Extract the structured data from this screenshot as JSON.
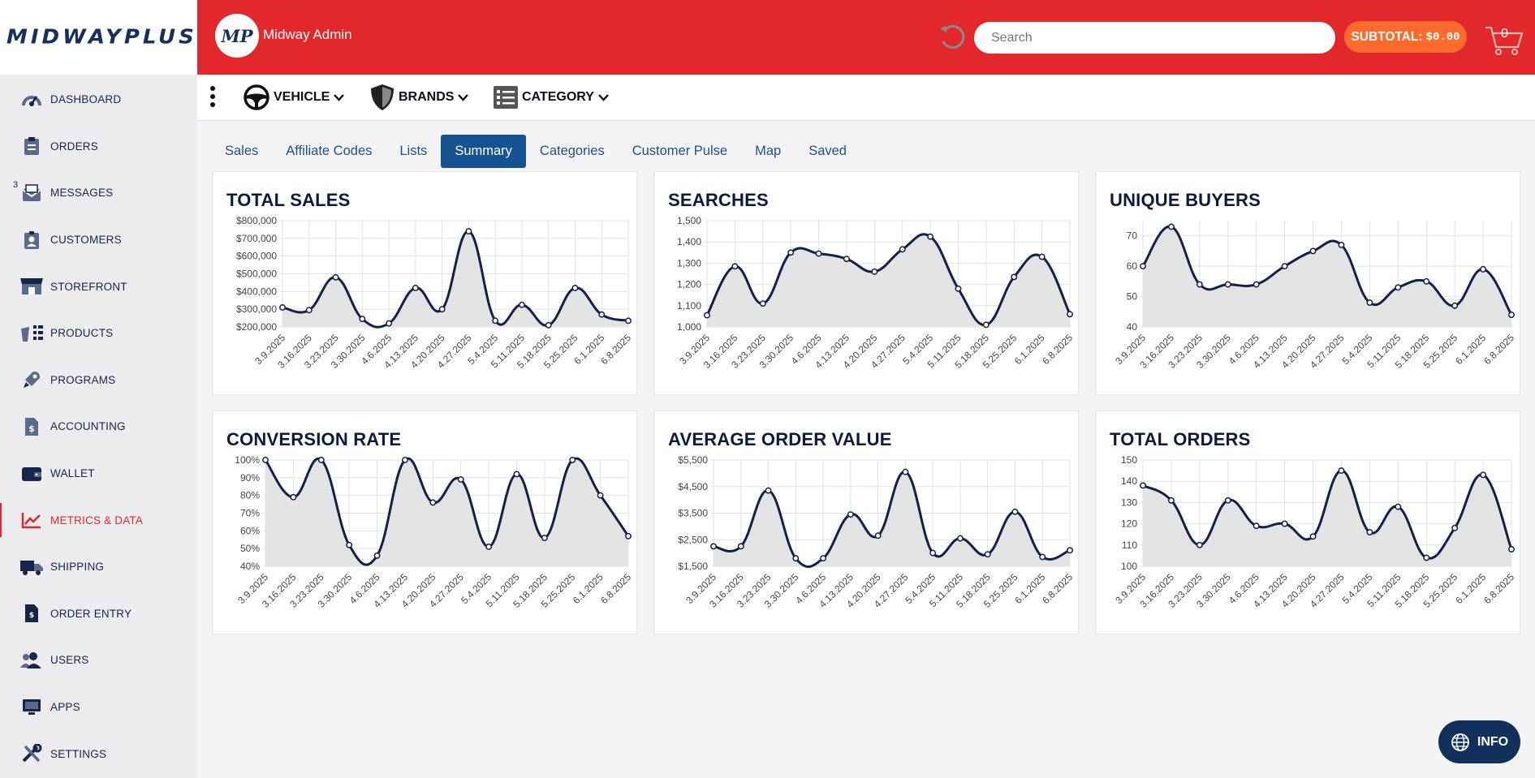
{
  "brand": {
    "logo": "MIDWAYPLUS"
  },
  "sidebar": {
    "items": [
      {
        "label": "DASHBOARD",
        "icon": "dashboard-icon"
      },
      {
        "label": "ORDERS",
        "icon": "orders-icon"
      },
      {
        "label": "MESSAGES",
        "icon": "messages-icon",
        "badge": "3"
      },
      {
        "label": "CUSTOMERS",
        "icon": "customers-icon"
      },
      {
        "label": "STOREFRONT",
        "icon": "storefront-icon"
      },
      {
        "label": "PRODUCTS",
        "icon": "products-icon"
      },
      {
        "label": "PROGRAMS",
        "icon": "programs-icon"
      },
      {
        "label": "ACCOUNTING",
        "icon": "accounting-icon"
      },
      {
        "label": "WALLET",
        "icon": "wallet-icon"
      },
      {
        "label": "METRICS & DATA",
        "icon": "metrics-icon",
        "active": true
      },
      {
        "label": "SHIPPING",
        "icon": "shipping-icon"
      },
      {
        "label": "ORDER ENTRY",
        "icon": "order-entry-icon"
      },
      {
        "label": "USERS",
        "icon": "users-icon"
      },
      {
        "label": "APPS",
        "icon": "apps-icon"
      },
      {
        "label": "SETTINGS",
        "icon": "settings-icon"
      }
    ]
  },
  "header": {
    "avatar_text": "MP",
    "admin_name": "Midway Admin",
    "search_placeholder": "Search",
    "subtotal_label": "SUBTOTAL:",
    "subtotal_value": "$0.00",
    "cart_count": "0"
  },
  "filters": {
    "vehicle": "VEHICLE",
    "brands": "BRANDS",
    "category": "CATEGORY"
  },
  "tabs": [
    "Sales",
    "Affiliate Codes",
    "Lists",
    "Summary",
    "Categories",
    "Customer Pulse",
    "Map",
    "Saved"
  ],
  "active_tab": "Summary",
  "info_button": "INFO",
  "colors": {
    "header_red": "#e2282b",
    "navy": "#0e1a3c",
    "tab_active": "#155292",
    "subtotal_orange": "#ff6b2c",
    "line": "#13204a",
    "area": "#e3e3e3"
  },
  "chart_data": [
    {
      "type": "area",
      "title": "TOTAL SALES",
      "x": [
        "3.9.2025",
        "3.16.2025",
        "3.23.2025",
        "3.30.2025",
        "4.6.2025",
        "4.13.2025",
        "4.20.2025",
        "4.27.2025",
        "5.4.2025",
        "5.11.2025",
        "5.18.2025",
        "5.25.2025",
        "6.1.2025",
        "6.8.2025"
      ],
      "values": [
        310000,
        295000,
        480000,
        245000,
        220000,
        420000,
        300000,
        740000,
        235000,
        325000,
        210000,
        420000,
        270000,
        235000
      ],
      "ylim": [
        200000,
        800000
      ],
      "yticks": [
        200000,
        300000,
        400000,
        500000,
        600000,
        700000,
        800000
      ],
      "ytick_labels": [
        "$200,000",
        "$300,000",
        "$400,000",
        "$500,000",
        "$600,000",
        "$700,000",
        "$800,000"
      ],
      "grid": true
    },
    {
      "type": "area",
      "title": "SEARCHES",
      "x": [
        "3.9.2025",
        "3.16.2025",
        "3.23.2025",
        "3.30.2025",
        "4.6.2025",
        "4.13.2025",
        "4.20.2025",
        "4.27.2025",
        "5.4.2025",
        "5.11.2025",
        "5.18.2025",
        "5.25.2025",
        "6.1.2025",
        "6.8.2025"
      ],
      "values": [
        1055,
        1285,
        1110,
        1350,
        1345,
        1320,
        1260,
        1365,
        1425,
        1180,
        1010,
        1235,
        1330,
        1060
      ],
      "ylim": [
        1000,
        1500
      ],
      "yticks": [
        1000,
        1100,
        1200,
        1300,
        1400,
        1500
      ],
      "ytick_labels": [
        "1,000",
        "1,100",
        "1,200",
        "1,300",
        "1,400",
        "1,500"
      ],
      "grid": true
    },
    {
      "type": "area",
      "title": "UNIQUE BUYERS",
      "x": [
        "3.9.2025",
        "3.16.2025",
        "3.23.2025",
        "3.30.2025",
        "4.6.2025",
        "4.13.2025",
        "4.20.2025",
        "4.27.2025",
        "5.4.2025",
        "5.11.2025",
        "5.18.2025",
        "5.25.2025",
        "6.1.2025",
        "6.8.2025"
      ],
      "values": [
        60,
        73,
        54,
        54,
        54,
        60,
        65,
        67,
        48,
        53,
        55,
        47,
        59,
        44
      ],
      "ylim": [
        40,
        75
      ],
      "yticks": [
        40,
        50,
        60,
        70
      ],
      "ytick_labels": [
        "40",
        "50",
        "60",
        "70"
      ],
      "grid": true
    },
    {
      "type": "area",
      "title": "CONVERSION RATE",
      "x": [
        "3.9.2025",
        "3.16.2025",
        "3.23.2025",
        "3.30.2025",
        "4.6.2025",
        "4.13.2025",
        "4.20.2025",
        "4.27.2025",
        "5.4.2025",
        "5.11.2025",
        "5.18.2025",
        "5.25.2025",
        "6.1.2025",
        "6.8.2025"
      ],
      "values": [
        100,
        79,
        100,
        52,
        46,
        100,
        76,
        89,
        51,
        92,
        56,
        100,
        80,
        57
      ],
      "ylim": [
        40,
        100
      ],
      "yticks": [
        40,
        50,
        60,
        70,
        80,
        90,
        100
      ],
      "ytick_labels": [
        "40%",
        "50%",
        "60%",
        "70%",
        "80%",
        "90%",
        "100%"
      ],
      "grid": true
    },
    {
      "type": "area",
      "title": "AVERAGE ORDER VALUE",
      "x": [
        "3.9.2025",
        "3.16.2025",
        "3.23.2025",
        "3.30.2025",
        "4.6.2025",
        "4.13.2025",
        "4.20.2025",
        "4.27.2025",
        "5.4.2025",
        "5.11.2025",
        "5.18.2025",
        "5.25.2025",
        "6.1.2025",
        "6.8.2025"
      ],
      "values": [
        2250,
        2250,
        4350,
        1800,
        1800,
        3450,
        2650,
        5050,
        2000,
        2550,
        1950,
        3550,
        1850,
        2100
      ],
      "ylim": [
        1500,
        5500
      ],
      "yticks": [
        1500,
        2500,
        3500,
        4500,
        5500
      ],
      "ytick_labels": [
        "$1,500",
        "$2,500",
        "$3,500",
        "$4,500",
        "$5,500"
      ],
      "grid": true
    },
    {
      "type": "area",
      "title": "TOTAL ORDERS",
      "x": [
        "3.9.2025",
        "3.16.2025",
        "3.23.2025",
        "3.30.2025",
        "4.6.2025",
        "4.13.2025",
        "4.20.2025",
        "4.27.2025",
        "5.4.2025",
        "5.11.2025",
        "5.18.2025",
        "5.25.2025",
        "6.1.2025",
        "6.8.2025"
      ],
      "values": [
        138,
        131,
        110,
        131,
        119,
        120,
        114,
        145,
        116,
        128,
        104,
        118,
        143,
        108
      ],
      "ylim": [
        100,
        150
      ],
      "yticks": [
        100,
        110,
        120,
        130,
        140,
        150
      ],
      "ytick_labels": [
        "100",
        "110",
        "120",
        "130",
        "140",
        "150"
      ],
      "grid": true
    }
  ]
}
